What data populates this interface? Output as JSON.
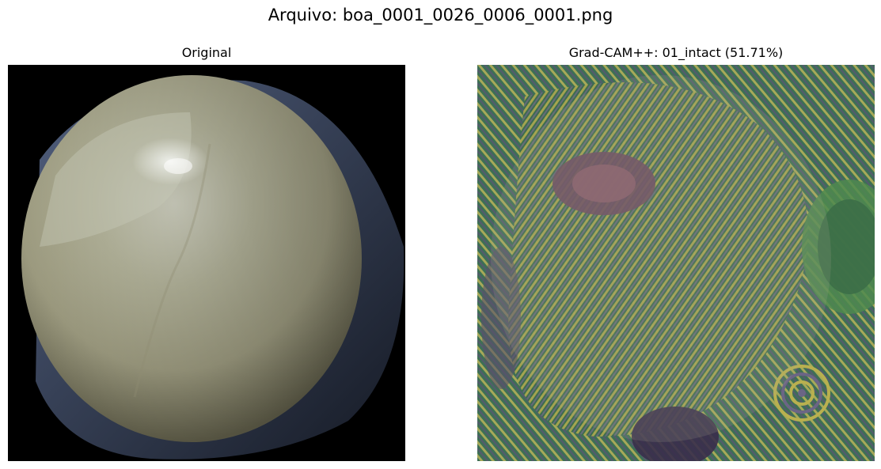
{
  "figure": {
    "suptitle": "Arquivo: boa_0001_0026_0006_0001.png"
  },
  "panels": [
    {
      "title": "Original",
      "content": "grain photograph"
    },
    {
      "title": "Grad-CAM++: 01_intact (51.71%)",
      "content": "grad-cam heatmap overlay"
    }
  ],
  "colors": {
    "background": "#ffffff",
    "grain": "#a9a88e",
    "heatmap_green": "#2f5d43",
    "heatmap_yellow": "#b9b04f",
    "heatmap_purple": "#5c4763"
  }
}
